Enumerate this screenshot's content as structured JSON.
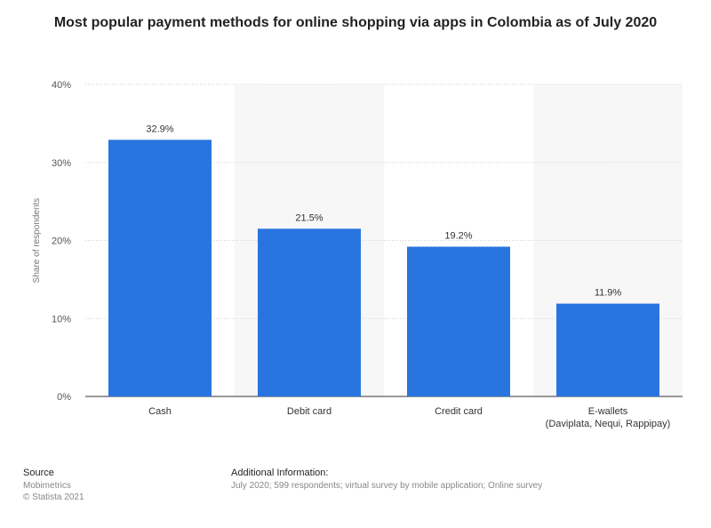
{
  "chart_data": {
    "type": "bar",
    "title": "Most popular payment methods for online shopping via apps in Colombia as of July 2020",
    "xlabel": "",
    "ylabel": "Share of respondents",
    "categories": [
      "Cash",
      "Debit card",
      "Credit card",
      "E-wallets\n(Daviplata, Nequi, Rappipay)"
    ],
    "values": [
      32.9,
      21.5,
      19.2,
      11.9
    ],
    "data_labels": [
      "32.9%",
      "21.5%",
      "19.2%",
      "11.9%"
    ],
    "ylim": [
      0,
      40
    ],
    "yticks": [
      0,
      10,
      20,
      30,
      40
    ],
    "ytick_labels": [
      "0%",
      "10%",
      "20%",
      "30%",
      "40%"
    ],
    "grid": true,
    "bar_color": "#2875e0"
  },
  "footer": {
    "source_heading": "Source",
    "source_lines": [
      "Mobimetrics",
      "© Statista 2021"
    ],
    "info_heading": "Additional Information:",
    "info_text": "July 2020; 599 respondents; virtual survey by mobile application; Online survey"
  }
}
